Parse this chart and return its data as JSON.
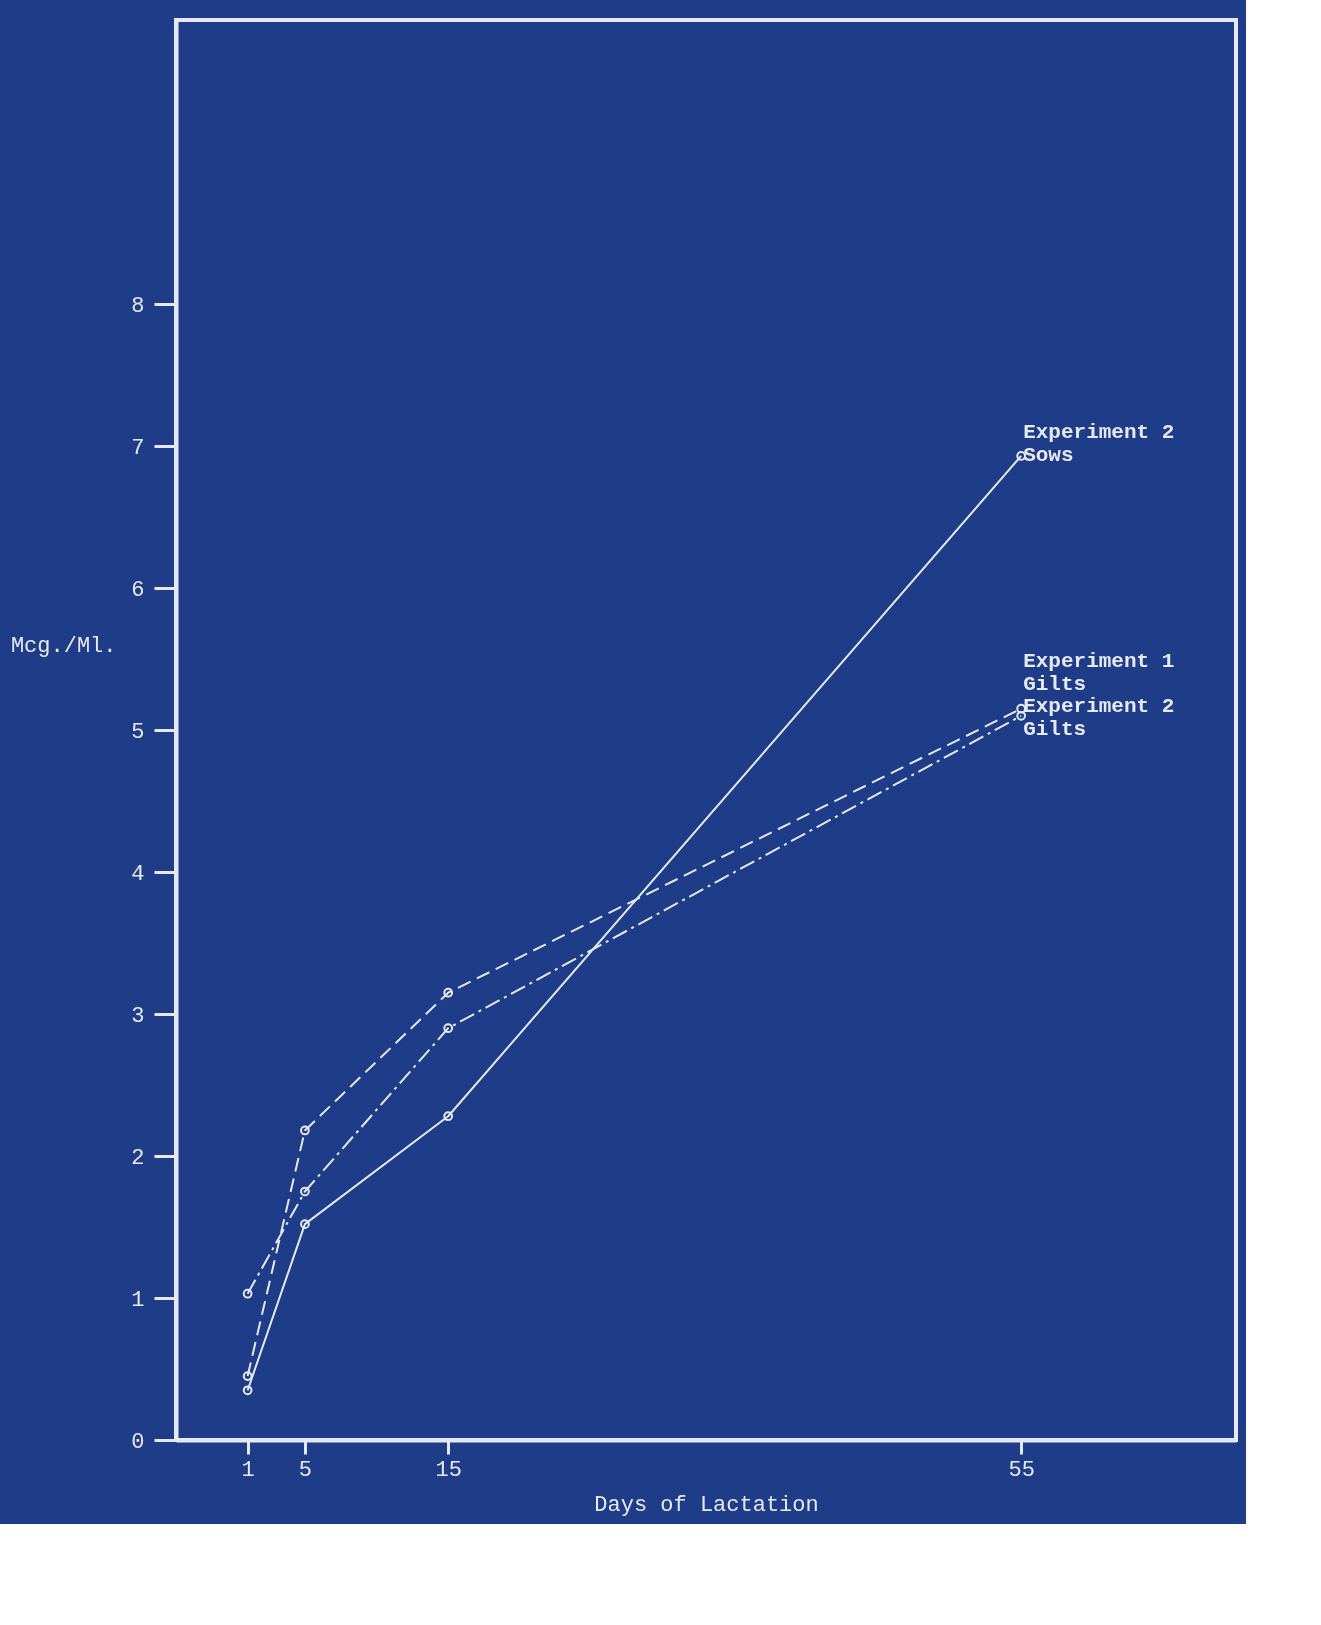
{
  "chart_data": {
    "type": "line",
    "xlabel": "Days of Lactation",
    "ylabel": "Mcg./Ml.",
    "x": [
      1,
      5,
      15,
      55
    ],
    "series": [
      {
        "name": "Experiment 2\nSows",
        "color": "#e6e9f0",
        "values": [
          0.35,
          1.52,
          2.28,
          6.93
        ],
        "line_style": "solid"
      },
      {
        "name": "Experiment 1\nGilts",
        "color": "#e6e9f0",
        "values": [
          0.45,
          2.18,
          3.15,
          5.15
        ],
        "line_style": "dashed"
      },
      {
        "name": "Experiment 2\nGilts",
        "color": "#e6e9f0",
        "values": [
          1.03,
          1.75,
          2.9,
          5.1
        ],
        "line_style": "dashdot"
      }
    ],
    "xlim": [
      -4,
      70
    ],
    "ylim": [
      0,
      10
    ],
    "xticks": [
      1,
      5,
      15,
      55
    ],
    "yticks": [
      0,
      1,
      2,
      3,
      4,
      5,
      6,
      7,
      8
    ],
    "marker": "circle",
    "grid": false
  }
}
